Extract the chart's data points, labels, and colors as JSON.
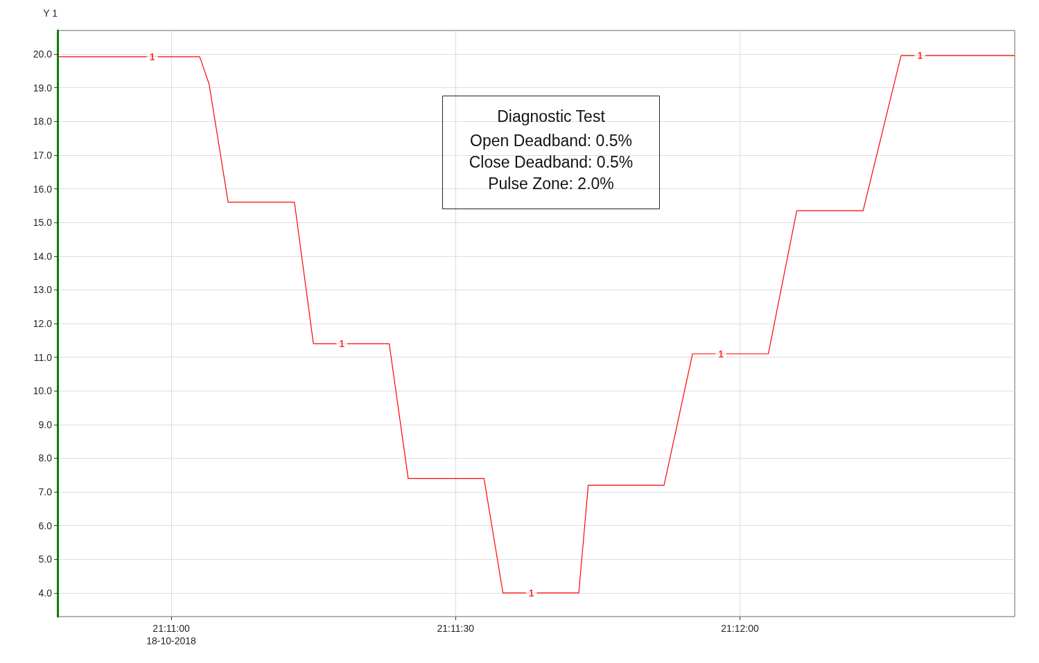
{
  "chart_data": {
    "type": "line",
    "title": "Diagnostic Test",
    "ylabel": "Y 1",
    "annotations": [
      "Open Deadband: 0.5%",
      "Close Deadband: 0.5%",
      "Pulse Zone: 2.0%",
      {
        "text": "1",
        "x": "2018-10-18T21:10:58",
        "y": 19.92
      },
      {
        "text": "1",
        "x": "2018-10-18T21:11:18",
        "y": 11.4
      },
      {
        "text": "1",
        "x": "2018-10-18T21:11:38",
        "y": 4.0
      },
      {
        "text": "1",
        "x": "2018-10-18T21:11:58",
        "y": 11.1
      },
      {
        "text": "1",
        "x": "2018-10-18T21:12:19",
        "y": 19.95
      }
    ],
    "x": [
      "2018-10-18T21:10:48",
      "2018-10-18T21:11:03",
      "2018-10-18T21:11:04",
      "2018-10-18T21:11:06",
      "2018-10-18T21:11:13",
      "2018-10-18T21:11:15",
      "2018-10-18T21:11:23",
      "2018-10-18T21:11:25",
      "2018-10-18T21:11:33",
      "2018-10-18T21:11:35",
      "2018-10-18T21:11:43",
      "2018-10-18T21:11:44",
      "2018-10-18T21:11:52",
      "2018-10-18T21:11:55",
      "2018-10-18T21:12:03",
      "2018-10-18T21:12:06",
      "2018-10-18T21:12:13",
      "2018-10-18T21:12:17",
      "2018-10-18T21:12:29"
    ],
    "series": [
      {
        "color": "#ff0000",
        "values": [
          19.92,
          19.92,
          19.1,
          15.6,
          15.6,
          11.4,
          11.4,
          7.4,
          7.4,
          4.0,
          4.0,
          7.2,
          7.2,
          11.1,
          11.1,
          15.35,
          15.35,
          19.95,
          19.95
        ]
      }
    ],
    "xlim": [
      "2018-10-18T21:10:48",
      "2018-10-18T21:12:29"
    ],
    "xticks": [
      {
        "value": "2018-10-18T21:11:00",
        "label": "21:11:00\n18-10-2018"
      },
      {
        "value": "2018-10-18T21:11:30",
        "label": "21:11:30"
      },
      {
        "value": "2018-10-18T21:12:00",
        "label": "21:12:00"
      }
    ],
    "ylim": [
      3.3,
      20.7
    ],
    "yticks": [
      {
        "value": 4,
        "label": "4.0"
      },
      {
        "value": 5,
        "label": "5.0"
      },
      {
        "value": 6,
        "label": "6.0"
      },
      {
        "value": 7,
        "label": "7.0"
      },
      {
        "value": 8,
        "label": "8.0"
      },
      {
        "value": 9,
        "label": "9.0"
      },
      {
        "value": 10,
        "label": "10.0"
      },
      {
        "value": 11,
        "label": "11.0"
      },
      {
        "value": 12,
        "label": "12.0"
      },
      {
        "value": 13,
        "label": "13.0"
      },
      {
        "value": 14,
        "label": "14.0"
      },
      {
        "value": 15,
        "label": "15.0"
      },
      {
        "value": 16,
        "label": "16.0"
      },
      {
        "value": 17,
        "label": "17.0"
      },
      {
        "value": 18,
        "label": "18.0"
      },
      {
        "value": 19,
        "label": "19.0"
      },
      {
        "value": 20,
        "label": "20.0"
      }
    ],
    "grid": true,
    "marker": "none",
    "line_style": "solid"
  }
}
